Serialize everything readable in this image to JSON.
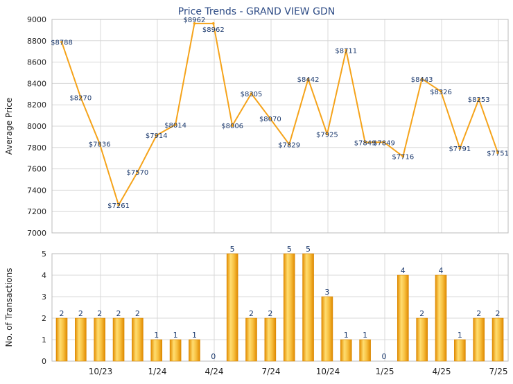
{
  "chart_data": [
    {
      "type": "line",
      "title": "Price Trends - GRAND VIEW GDN",
      "ylabel": "Average Price",
      "xlabel": "",
      "ylim": [
        7000,
        9000
      ],
      "yticks": [
        7000,
        7200,
        7400,
        7600,
        7800,
        8000,
        8200,
        8400,
        8600,
        8800,
        9000
      ],
      "grid": true,
      "series": [
        {
          "values": [
            8788,
            8270,
            7836,
            7261,
            7570,
            7914,
            8014,
            8962,
            8962,
            8006,
            8305,
            8070,
            7829,
            8442,
            7925,
            8711,
            7849,
            7849,
            7716,
            8443,
            8326,
            7791,
            8253,
            7751
          ],
          "data_labels": [
            "$8788",
            "$8270",
            "$7836",
            "$7261",
            "$7570",
            "$7914",
            "$8014",
            "$8962",
            "$8962",
            "$8006",
            "$8305",
            "$8070",
            "$7829",
            "$8442",
            "$7925",
            "$8711",
            "$7849",
            "$7849",
            "$7716",
            "$8443",
            "$8326",
            "$7791",
            "$8253",
            "$7751"
          ]
        }
      ]
    },
    {
      "type": "bar",
      "ylabel": "No. of Transactions",
      "xlabel": "",
      "ylim": [
        0,
        5
      ],
      "yticks": [
        0,
        1,
        2,
        3,
        4,
        5
      ],
      "grid": true,
      "x_tick_labels": [
        "10/23",
        "1/24",
        "4/24",
        "7/24",
        "10/24",
        "1/25",
        "4/25",
        "7/25"
      ],
      "values": [
        2,
        2,
        2,
        2,
        2,
        1,
        1,
        1,
        0,
        5,
        2,
        2,
        5,
        5,
        3,
        1,
        1,
        0,
        4,
        2,
        4,
        1,
        2,
        2
      ]
    }
  ],
  "colors": {
    "line": "#f5a31a",
    "bar_dark": "#e89a0c",
    "bar_light": "#ffd86a",
    "grid": "#d8d8d8",
    "label_text": "#1c3a6e",
    "title_text": "#2d4b85"
  }
}
